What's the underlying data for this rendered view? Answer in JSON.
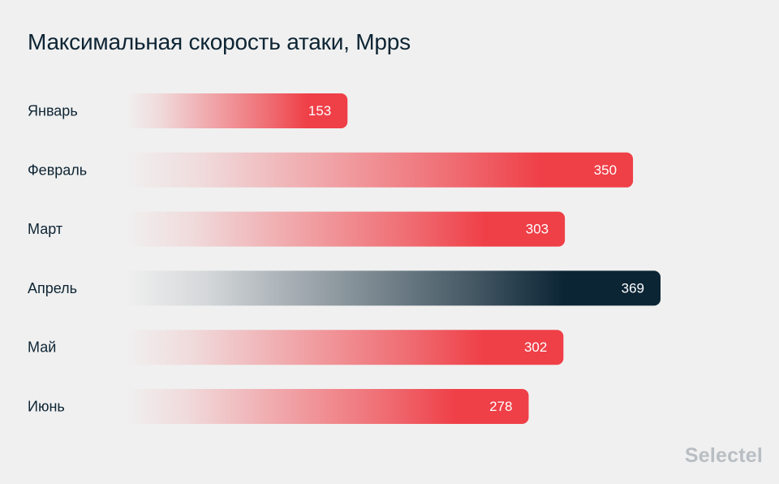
{
  "chart_data": {
    "type": "bar",
    "orientation": "horizontal",
    "title": "Максимальная скорость атаки, Mpps",
    "categories": [
      "Январь",
      "Февраль",
      "Март",
      "Апрель",
      "Май",
      "Июнь"
    ],
    "values": [
      153,
      350,
      303,
      369,
      302,
      278
    ],
    "highlight_index": 3,
    "data_labels": [
      "153",
      "350",
      "303",
      "369",
      "302",
      "278"
    ],
    "colors": {
      "bar": "#ef3f47",
      "highlight": "#0b2535",
      "label_text": "#0d2433",
      "value_text": "#ffffff"
    },
    "xlim": [
      0,
      369
    ]
  },
  "brand": {
    "name": "Selectel"
  }
}
